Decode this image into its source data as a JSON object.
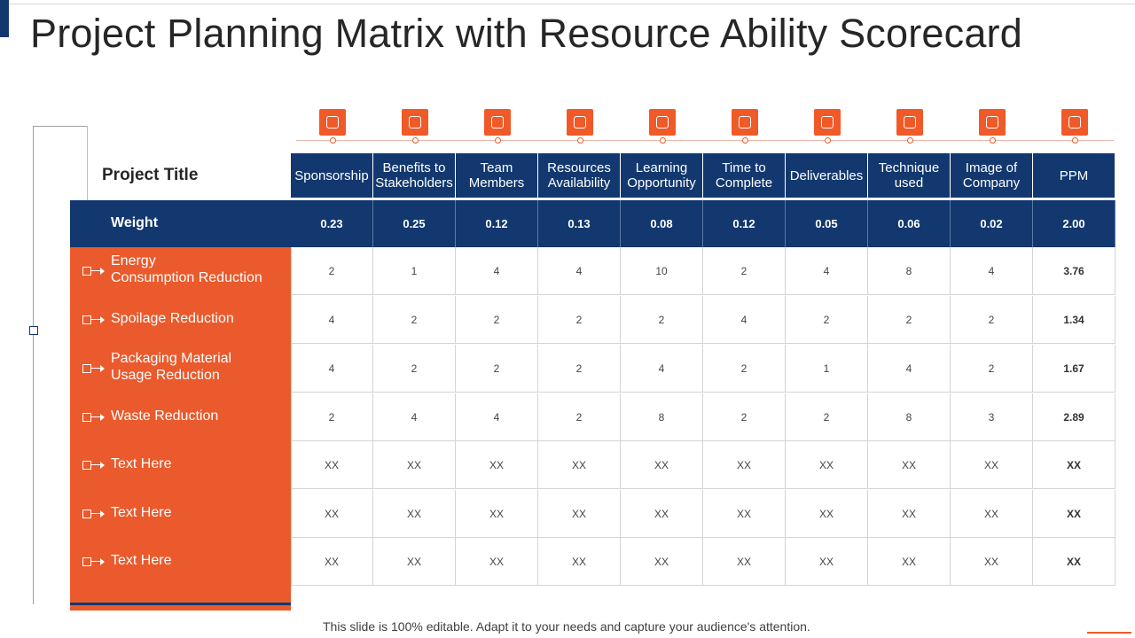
{
  "title": "Project Planning Matrix with Resource Ability Scorecard",
  "project_title_label": "Project Title",
  "weight_label": "Weight",
  "columns": [
    {
      "label_line1": "Sponsorship",
      "label_line2": "",
      "icon": "sponsorship-icon",
      "weight": "0.23"
    },
    {
      "label_line1": "Benefits to",
      "label_line2": "Stakeholders",
      "icon": "stakeholder-benefits-icon",
      "weight": "0.25"
    },
    {
      "label_line1": "Team",
      "label_line2": "Members",
      "icon": "team-hierarchy-icon",
      "weight": "0.12"
    },
    {
      "label_line1": "Resources",
      "label_line2": "Availability",
      "icon": "resources-icon",
      "weight": "0.13"
    },
    {
      "label_line1": "Learning",
      "label_line2": "Opportunity",
      "icon": "learning-search-icon",
      "weight": "0.08"
    },
    {
      "label_line1": "Time to",
      "label_line2": "Complete",
      "icon": "clock-icon",
      "weight": "0.12"
    },
    {
      "label_line1": "Deliverables",
      "label_line2": "",
      "icon": "deliverables-icon",
      "weight": "0.05"
    },
    {
      "label_line1": "Technique",
      "label_line2": "used",
      "icon": "technique-document-icon",
      "weight": "0.06"
    },
    {
      "label_line1": "Image of",
      "label_line2": "Company",
      "icon": "company-building-icon",
      "weight": "0.02"
    },
    {
      "label_line1": "PPM",
      "label_line2": "",
      "icon": "ppm-hand-icon",
      "weight": "2.00"
    }
  ],
  "rows": [
    {
      "label_line1": "Energy",
      "label_line2": "Consumption Reduction",
      "values": [
        "2",
        "1",
        "4",
        "4",
        "10",
        "2",
        "4",
        "8",
        "4",
        "3.76"
      ]
    },
    {
      "label_line1": "Spoilage Reduction",
      "label_line2": "",
      "values": [
        "4",
        "2",
        "2",
        "2",
        "2",
        "4",
        "2",
        "2",
        "2",
        "1.34"
      ]
    },
    {
      "label_line1": "Packaging Material",
      "label_line2": "Usage Reduction",
      "values": [
        "4",
        "2",
        "2",
        "2",
        "4",
        "2",
        "1",
        "4",
        "2",
        "1.67"
      ]
    },
    {
      "label_line1": "Waste Reduction",
      "label_line2": "",
      "values": [
        "2",
        "4",
        "4",
        "2",
        "8",
        "2",
        "2",
        "8",
        "3",
        "2.89"
      ]
    },
    {
      "label_line1": "Text Here",
      "label_line2": "",
      "values": [
        "XX",
        "XX",
        "XX",
        "XX",
        "XX",
        "XX",
        "XX",
        "XX",
        "XX",
        "XX"
      ]
    },
    {
      "label_line1": "Text Here",
      "label_line2": "",
      "values": [
        "XX",
        "XX",
        "XX",
        "XX",
        "XX",
        "XX",
        "XX",
        "XX",
        "XX",
        "XX"
      ]
    },
    {
      "label_line1": "Text Here",
      "label_line2": "",
      "values": [
        "XX",
        "XX",
        "XX",
        "XX",
        "XX",
        "XX",
        "XX",
        "XX",
        "XX",
        "XX"
      ]
    }
  ],
  "footer": "This slide is 100% editable. Adapt it to your needs and capture your audience's attention.",
  "colors": {
    "navy": "#12386f",
    "orange": "#ea5a2c",
    "icon_orange": "#f05a28"
  }
}
